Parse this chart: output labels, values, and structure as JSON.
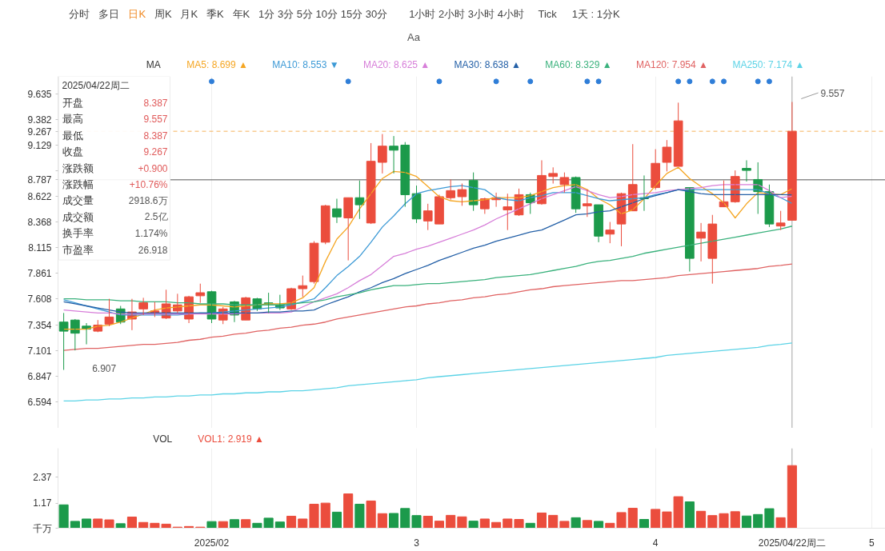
{
  "chart_data": [
    {
      "type": "other",
      "annotations": [
        "分时",
        "多日",
        "日K",
        "周K",
        "月K",
        "季K",
        "年K",
        "1分 3分 5分 10分 15分 30分",
        "1小时 2小时 3小时 4小时",
        "Tick",
        "1天 : 1分K"
      ],
      "colors": [
        "#444444",
        "#444444",
        "#f08a24",
        "#444444",
        "#444444",
        "#444444",
        "#444444",
        "#444444",
        "#444444",
        "#444444",
        "#444444"
      ],
      "subtitle": "Aa"
    },
    {
      "type": "candlestick",
      "categories": [
        null,
        null,
        null,
        null,
        null,
        null,
        null,
        null,
        null,
        null,
        null,
        null,
        null,
        "2025/02",
        null,
        null,
        null,
        null,
        null,
        null,
        null,
        null,
        null,
        null,
        null,
        null,
        null,
        null,
        null,
        null,
        null,
        "3",
        null,
        null,
        null,
        null,
        null,
        null,
        null,
        null,
        null,
        null,
        null,
        null,
        null,
        null,
        null,
        null,
        null,
        null,
        null,
        null,
        "4",
        null,
        null,
        null,
        null,
        null,
        null,
        null,
        null,
        null,
        null,
        null,
        "2025/04/22周二",
        null,
        null,
        null,
        null,
        null,
        null,
        "5"
      ],
      "ohlc": [
        [
          7.38,
          7.47,
          6.907,
          7.29
        ],
        [
          7.4,
          7.41,
          7.1,
          7.27
        ],
        [
          7.34,
          7.37,
          7.16,
          7.31
        ],
        [
          7.29,
          7.4,
          7.28,
          7.35
        ],
        [
          7.36,
          7.61,
          7.34,
          7.43
        ],
        [
          7.51,
          7.54,
          7.36,
          7.38
        ],
        [
          7.41,
          7.61,
          7.3,
          7.48
        ],
        [
          7.51,
          7.62,
          7.45,
          7.57
        ],
        [
          7.47,
          7.58,
          7.43,
          7.49
        ],
        [
          7.42,
          7.7,
          7.41,
          7.56
        ],
        [
          7.49,
          7.66,
          7.47,
          7.55
        ],
        [
          7.41,
          7.64,
          7.37,
          7.63
        ],
        [
          7.64,
          7.76,
          7.57,
          7.67
        ],
        [
          7.68,
          7.69,
          7.37,
          7.41
        ],
        [
          7.4,
          7.53,
          7.36,
          7.51
        ],
        [
          7.58,
          7.59,
          7.38,
          7.45
        ],
        [
          7.4,
          7.63,
          7.4,
          7.62
        ],
        [
          7.61,
          7.62,
          7.49,
          7.51
        ],
        [
          7.57,
          7.67,
          7.47,
          7.56
        ],
        [
          7.55,
          7.65,
          7.5,
          7.52
        ],
        [
          7.51,
          7.72,
          7.5,
          7.71
        ],
        [
          7.71,
          7.84,
          7.63,
          7.74
        ],
        [
          7.78,
          8.18,
          7.76,
          8.16
        ],
        [
          8.17,
          8.54,
          8.15,
          8.53
        ],
        [
          8.5,
          8.6,
          8.36,
          8.42
        ],
        [
          8.41,
          8.61,
          7.99,
          8.61
        ],
        [
          8.61,
          8.78,
          8.4,
          8.54
        ],
        [
          8.36,
          9.15,
          8.35,
          8.97
        ],
        [
          8.96,
          9.24,
          8.85,
          9.12
        ],
        [
          9.12,
          9.22,
          8.85,
          9.08
        ],
        [
          9.13,
          9.16,
          8.52,
          8.64
        ],
        [
          8.65,
          8.73,
          8.36,
          8.4
        ],
        [
          8.38,
          8.55,
          8.29,
          8.48
        ],
        [
          8.35,
          8.64,
          8.35,
          8.62
        ],
        [
          8.61,
          8.79,
          8.59,
          8.68
        ],
        [
          8.62,
          8.75,
          8.53,
          8.69
        ],
        [
          8.78,
          8.86,
          8.48,
          8.54
        ],
        [
          8.5,
          8.61,
          8.45,
          8.6
        ],
        [
          8.59,
          8.66,
          8.52,
          8.61
        ],
        [
          8.49,
          8.65,
          8.29,
          8.52
        ],
        [
          8.44,
          8.7,
          8.43,
          8.64
        ],
        [
          8.64,
          8.66,
          8.45,
          8.56
        ],
        [
          8.55,
          8.98,
          8.54,
          8.83
        ],
        [
          8.82,
          8.91,
          8.75,
          8.85
        ],
        [
          8.74,
          8.86,
          8.66,
          8.81
        ],
        [
          8.81,
          8.82,
          8.46,
          8.5
        ],
        [
          8.53,
          8.69,
          8.42,
          8.55
        ],
        [
          8.54,
          8.54,
          8.17,
          8.23
        ],
        [
          8.25,
          8.37,
          8.16,
          8.29
        ],
        [
          8.35,
          8.66,
          8.13,
          8.65
        ],
        [
          8.48,
          9.14,
          8.48,
          8.74
        ],
        [
          8.61,
          8.83,
          8.48,
          8.6
        ],
        [
          8.71,
          9.09,
          8.69,
          8.95
        ],
        [
          8.96,
          9.18,
          8.87,
          9.11
        ],
        [
          8.92,
          9.55,
          8.92,
          9.37
        ],
        [
          8.71,
          8.71,
          7.88,
          8.01
        ],
        [
          8.21,
          8.36,
          7.98,
          8.27
        ],
        [
          8.01,
          8.44,
          7.76,
          8.35
        ],
        [
          8.52,
          8.78,
          8.52,
          8.57
        ],
        [
          8.57,
          8.88,
          8.56,
          8.82
        ],
        [
          8.9,
          8.98,
          8.77,
          8.88
        ],
        [
          8.79,
          8.96,
          8.45,
          8.67
        ],
        [
          8.67,
          8.74,
          8.32,
          8.35
        ],
        [
          8.33,
          8.48,
          8.29,
          8.36
        ],
        [
          8.387,
          9.557,
          8.387,
          9.267
        ],
        null,
        null,
        null,
        null,
        null,
        null,
        null
      ],
      "colors": [
        "#1c9a4b",
        "#1c9a4b",
        "#1c9a4b",
        "#eb4d3d",
        "#eb4d3d",
        "#1c9a4b",
        "#eb4d3d",
        "#eb4d3d",
        "#eb4d3d",
        "#eb4d3d",
        "#eb4d3d",
        "#eb4d3d",
        "#eb4d3d",
        "#1c9a4b",
        "#eb4d3d",
        "#1c9a4b",
        "#eb4d3d",
        "#1c9a4b",
        "#1c9a4b",
        "#1c9a4b",
        "#eb4d3d",
        "#eb4d3d",
        "#eb4d3d",
        "#eb4d3d",
        "#1c9a4b",
        "#eb4d3d",
        "#1c9a4b",
        "#eb4d3d",
        "#eb4d3d",
        "#1c9a4b",
        "#1c9a4b",
        "#1c9a4b",
        "#eb4d3d",
        "#eb4d3d",
        "#eb4d3d",
        "#eb4d3d",
        "#1c9a4b",
        "#eb4d3d",
        "#eb4d3d",
        "#eb4d3d",
        "#eb4d3d",
        "#1c9a4b",
        "#eb4d3d",
        "#eb4d3d",
        "#eb4d3d",
        "#1c9a4b",
        "#eb4d3d",
        "#1c9a4b",
        "#eb4d3d",
        "#eb4d3d",
        "#eb4d3d",
        "#1c9a4b",
        "#eb4d3d",
        "#eb4d3d",
        "#eb4d3d",
        "#1c9a4b",
        "#eb4d3d",
        "#eb4d3d",
        "#eb4d3d",
        "#eb4d3d",
        "#1c9a4b",
        "#1c9a4b",
        "#1c9a4b",
        "#eb4d3d",
        "#eb4d3d",
        null,
        null,
        null,
        null,
        null,
        null,
        null
      ],
      "series": [
        {
          "type": "line",
          "name": "MA5: 8.699 ▲",
          "color": "#f5a623",
          "values": [
            7.31,
            7.31,
            7.31,
            7.34,
            7.35,
            7.38,
            7.42,
            7.46,
            7.5,
            7.52,
            7.53,
            7.54,
            7.55,
            7.55,
            7.54,
            7.53,
            7.54,
            7.55,
            7.56,
            7.56,
            7.57,
            7.62,
            7.72,
            7.98,
            8.2,
            8.32,
            8.5,
            8.65,
            8.8,
            8.87,
            8.86,
            8.82,
            8.72,
            8.62,
            8.58,
            8.57,
            8.58,
            8.59,
            8.61,
            8.61,
            8.61,
            8.63,
            8.67,
            8.71,
            8.73,
            8.74,
            8.69,
            8.6,
            8.54,
            8.45,
            8.49,
            8.6,
            8.73,
            8.85,
            8.91,
            8.8,
            8.72,
            8.65,
            8.56,
            8.41,
            8.55,
            8.66,
            8.65,
            8.64,
            8.699,
            null,
            null,
            null,
            null,
            null,
            null,
            null
          ]
        },
        {
          "type": "line",
          "name": "MA10: 8.553 ▼",
          "color": "#3d9ad6",
          "values": [
            7.6,
            7.57,
            7.54,
            7.51,
            7.48,
            7.45,
            7.45,
            7.45,
            7.45,
            7.45,
            7.45,
            7.46,
            7.47,
            7.47,
            7.48,
            7.49,
            7.5,
            7.51,
            7.52,
            7.53,
            7.55,
            7.58,
            7.61,
            7.72,
            7.84,
            7.93,
            8.03,
            8.17,
            8.32,
            8.43,
            8.55,
            8.65,
            8.68,
            8.7,
            8.72,
            8.73,
            8.71,
            8.69,
            8.61,
            8.59,
            8.58,
            8.61,
            8.63,
            8.66,
            8.66,
            8.66,
            8.63,
            8.6,
            8.58,
            8.59,
            8.6,
            8.61,
            8.64,
            8.66,
            8.69,
            8.69,
            8.69,
            8.69,
            8.69,
            8.69,
            8.69,
            8.69,
            8.65,
            8.61,
            8.553,
            null,
            null,
            null,
            null,
            null,
            null,
            null
          ]
        },
        {
          "type": "line",
          "name": "MA20: 8.625 ▲",
          "color": "#d77fd9",
          "values": [
            7.5,
            7.49,
            7.48,
            7.47,
            7.47,
            7.46,
            7.46,
            7.46,
            7.46,
            7.46,
            7.46,
            7.46,
            7.46,
            7.46,
            7.46,
            7.46,
            7.47,
            7.47,
            7.47,
            7.47,
            7.48,
            7.53,
            7.58,
            7.62,
            7.66,
            7.72,
            7.79,
            7.85,
            7.94,
            8.03,
            8.06,
            8.1,
            8.13,
            8.17,
            8.21,
            8.25,
            8.29,
            8.34,
            8.4,
            8.45,
            8.5,
            8.55,
            8.6,
            8.64,
            8.68,
            8.72,
            8.68,
            8.64,
            8.61,
            8.62,
            8.64,
            8.65,
            8.66,
            8.68,
            8.69,
            8.7,
            8.71,
            8.73,
            8.74,
            8.74,
            8.74,
            8.74,
            8.68,
            8.61,
            8.625,
            null,
            null,
            null,
            null,
            null,
            null,
            null
          ]
        },
        {
          "type": "line",
          "name": "MA30: 8.638 ▲",
          "color": "#2460a7",
          "values": [
            7.58,
            7.56,
            7.54,
            7.52,
            7.5,
            7.48,
            7.47,
            7.47,
            7.47,
            7.47,
            7.47,
            7.47,
            7.47,
            7.47,
            7.47,
            7.47,
            7.47,
            7.47,
            7.48,
            7.48,
            7.49,
            7.49,
            7.5,
            7.55,
            7.59,
            7.63,
            7.68,
            7.72,
            7.77,
            7.81,
            7.86,
            7.9,
            7.94,
            7.99,
            8.03,
            8.07,
            8.11,
            8.14,
            8.18,
            8.21,
            8.24,
            8.27,
            8.29,
            8.34,
            8.39,
            8.44,
            8.45,
            8.47,
            8.48,
            8.52,
            8.56,
            8.6,
            8.63,
            8.66,
            8.69,
            8.67,
            8.65,
            8.64,
            8.64,
            8.64,
            8.64,
            8.64,
            8.64,
            8.64,
            8.638,
            null,
            null,
            null,
            null,
            null,
            null,
            null
          ]
        },
        {
          "type": "line",
          "name": "MA60: 8.329 ▲",
          "color": "#3bb27d",
          "values": [
            7.61,
            7.61,
            7.6,
            7.6,
            7.6,
            7.59,
            7.59,
            7.58,
            7.58,
            7.58,
            7.57,
            7.57,
            7.56,
            7.56,
            7.56,
            7.55,
            7.55,
            7.55,
            7.55,
            7.55,
            7.56,
            7.57,
            7.58,
            7.6,
            7.63,
            7.65,
            7.67,
            7.7,
            7.72,
            7.74,
            7.74,
            7.75,
            7.76,
            7.76,
            7.77,
            7.78,
            7.79,
            7.8,
            7.82,
            7.83,
            7.84,
            7.85,
            7.87,
            7.89,
            7.91,
            7.93,
            7.96,
            7.98,
            7.99,
            8.01,
            8.03,
            8.06,
            8.08,
            8.1,
            8.12,
            8.14,
            8.16,
            8.18,
            8.2,
            8.22,
            8.24,
            8.26,
            8.28,
            8.3,
            8.329,
            null,
            null,
            null,
            null,
            null,
            null,
            null
          ]
        },
        {
          "type": "line",
          "name": "MA120: 7.954 ▲",
          "color": "#e06363",
          "values": [
            7.1,
            7.11,
            7.12,
            7.12,
            7.13,
            7.14,
            7.15,
            7.16,
            7.16,
            7.17,
            7.18,
            7.2,
            7.21,
            7.23,
            7.24,
            7.26,
            7.27,
            7.29,
            7.3,
            7.32,
            7.33,
            7.35,
            7.36,
            7.38,
            7.41,
            7.43,
            7.45,
            7.47,
            7.49,
            7.51,
            7.53,
            7.54,
            7.56,
            7.57,
            7.59,
            7.6,
            7.62,
            7.63,
            7.65,
            7.66,
            7.68,
            7.7,
            7.71,
            7.73,
            7.74,
            7.75,
            7.76,
            7.77,
            7.78,
            7.79,
            7.79,
            7.8,
            7.81,
            7.82,
            7.84,
            7.85,
            7.86,
            7.87,
            7.88,
            7.89,
            7.9,
            7.91,
            7.93,
            7.94,
            7.954,
            null,
            null,
            null,
            null,
            null,
            null,
            null
          ]
        },
        {
          "type": "line",
          "name": "MA250: 7.174 ▲",
          "color": "#5cd3e6",
          "values": [
            6.6,
            6.6,
            6.61,
            6.61,
            6.62,
            6.62,
            6.63,
            6.63,
            6.64,
            6.64,
            6.65,
            6.65,
            6.66,
            6.66,
            6.67,
            6.67,
            6.68,
            6.68,
            6.69,
            6.69,
            6.7,
            6.7,
            6.71,
            6.72,
            6.73,
            6.75,
            6.76,
            6.77,
            6.78,
            6.79,
            6.8,
            6.81,
            6.83,
            6.84,
            6.85,
            6.86,
            6.87,
            6.88,
            6.89,
            6.9,
            6.91,
            6.92,
            6.93,
            6.94,
            6.95,
            6.96,
            6.97,
            6.98,
            6.99,
            7.0,
            7.01,
            7.02,
            7.03,
            7.05,
            7.06,
            7.07,
            7.08,
            7.09,
            7.1,
            7.11,
            7.12,
            7.13,
            7.15,
            7.16,
            7.174,
            null,
            null,
            null,
            null,
            null,
            null,
            null
          ]
        },
        {
          "type": "scatter",
          "color": "#2f7ed8",
          "marker": "circle",
          "values": [
            null,
            null,
            null,
            null,
            null,
            null,
            null,
            null,
            null,
            null,
            null,
            null,
            null,
            9.76,
            null,
            null,
            null,
            null,
            null,
            null,
            null,
            null,
            null,
            null,
            null,
            9.76,
            null,
            null,
            null,
            null,
            null,
            null,
            null,
            9.76,
            null,
            null,
            null,
            null,
            9.76,
            null,
            null,
            9.76,
            null,
            null,
            null,
            null,
            9.76,
            9.76,
            null,
            null,
            null,
            null,
            null,
            null,
            9.76,
            9.76,
            null,
            9.76,
            9.76,
            null,
            null,
            9.76,
            9.76,
            null,
            null,
            null,
            null,
            null,
            null,
            null,
            null,
            null
          ]
        }
      ],
      "ylim": [
        6.33,
        9.81
      ],
      "yticks": [
        9.635,
        9.382,
        9.129,
        {
          "value": 8.875,
          "label": null
        },
        8.622,
        8.368,
        8.115,
        7.861,
        7.608,
        7.354,
        7.101,
        6.847,
        6.594
      ],
      "tick_labels": "y",
      "grid": "x",
      "legend": "top",
      "legend_title": "MA",
      "ref_lines": [
        {
          "axis": "y",
          "value": 9.267,
          "label": "9.267",
          "color": "#f5b25a",
          "line_style": "dashed"
        },
        {
          "axis": "y",
          "value": 8.787,
          "label": "8.787",
          "color": "#555555"
        },
        {
          "axis": "x",
          "value": "2025/04/22周二",
          "color": "#aaaaaa"
        }
      ],
      "annotations": [
        {
          "text": "9.557",
          "x": "2025/04/22周二",
          "y": 9.557
        },
        "6.907"
      ]
    },
    {
      "type": "other",
      "title": "2025/04/22周二",
      "annotations": [
        "开盘",
        "8.387",
        "最高",
        "9.557",
        "最低",
        "8.387",
        "收盘",
        "9.267",
        "涨跌额",
        "+0.900",
        "涨跌幅",
        "+10.76%",
        "成交量",
        "2918.6万",
        "成交额",
        "2.5亿",
        "换手率",
        "1.174%",
        "市盈率",
        "26.918"
      ],
      "colors": [
        "#333333",
        "#e05a5a",
        "#333333",
        "#e05a5a",
        "#333333",
        "#e05a5a",
        "#333333",
        "#e05a5a",
        "#333333",
        "#e05a5a",
        "#333333",
        "#e05a5a",
        "#333333",
        "#555555",
        "#333333",
        "#555555",
        "#333333",
        "#555555",
        "#333333",
        "#555555"
      ]
    },
    {
      "type": "bar",
      "categories": [
        null,
        null,
        null,
        null,
        null,
        null,
        null,
        null,
        null,
        null,
        null,
        null,
        null,
        "2025/02",
        null,
        null,
        null,
        null,
        null,
        null,
        null,
        null,
        null,
        null,
        null,
        null,
        null,
        null,
        null,
        null,
        null,
        "3",
        null,
        null,
        null,
        null,
        null,
        null,
        null,
        null,
        null,
        null,
        null,
        null,
        null,
        null,
        null,
        null,
        null,
        null,
        null,
        null,
        "4",
        null,
        null,
        null,
        null,
        null,
        null,
        null,
        null,
        null,
        null,
        null,
        "2025/04/22周二",
        null,
        null,
        null,
        null,
        null,
        null,
        "5"
      ],
      "series": [
        {
          "name": "VOL1: 2.919 ▲",
          "values": [
            1.09,
            0.32,
            0.43,
            0.43,
            0.39,
            0.21,
            0.52,
            0.27,
            0.23,
            0.19,
            0.05,
            0.08,
            0.05,
            0.31,
            0.31,
            0.4,
            0.4,
            0.23,
            0.47,
            0.29,
            0.56,
            0.43,
            1.12,
            1.17,
            0.75,
            1.6,
            1.12,
            1.27,
            0.68,
            0.69,
            0.92,
            0.59,
            0.56,
            0.33,
            0.6,
            0.53,
            0.33,
            0.43,
            0.27,
            0.43,
            0.41,
            0.23,
            0.71,
            0.6,
            0.32,
            0.49,
            0.36,
            0.32,
            0.23,
            0.73,
            0.93,
            0.41,
            0.88,
            0.76,
            1.47,
            1.23,
            0.79,
            0.59,
            0.68,
            0.77,
            0.57,
            0.64,
            0.91,
            0.49,
            2.92,
            null,
            null,
            null,
            null,
            null,
            null,
            null
          ]
        }
      ],
      "colors": [
        "#1c9a4b",
        "#1c9a4b",
        "#1c9a4b",
        "#eb4d3d",
        "#eb4d3d",
        "#1c9a4b",
        "#eb4d3d",
        "#eb4d3d",
        "#eb4d3d",
        "#eb4d3d",
        "#eb4d3d",
        "#eb4d3d",
        "#eb4d3d",
        "#1c9a4b",
        "#eb4d3d",
        "#1c9a4b",
        "#eb4d3d",
        "#1c9a4b",
        "#1c9a4b",
        "#1c9a4b",
        "#eb4d3d",
        "#eb4d3d",
        "#eb4d3d",
        "#eb4d3d",
        "#1c9a4b",
        "#eb4d3d",
        "#1c9a4b",
        "#eb4d3d",
        "#eb4d3d",
        "#1c9a4b",
        "#1c9a4b",
        "#1c9a4b",
        "#eb4d3d",
        "#eb4d3d",
        "#eb4d3d",
        "#eb4d3d",
        "#1c9a4b",
        "#eb4d3d",
        "#eb4d3d",
        "#eb4d3d",
        "#eb4d3d",
        "#1c9a4b",
        "#eb4d3d",
        "#eb4d3d",
        "#eb4d3d",
        "#1c9a4b",
        "#eb4d3d",
        "#1c9a4b",
        "#eb4d3d",
        "#eb4d3d",
        "#eb4d3d",
        "#1c9a4b",
        "#eb4d3d",
        "#eb4d3d",
        "#eb4d3d",
        "#1c9a4b",
        "#eb4d3d",
        "#eb4d3d",
        "#eb4d3d",
        "#eb4d3d",
        "#1c9a4b",
        "#1c9a4b",
        "#1c9a4b",
        "#eb4d3d",
        "#eb4d3d",
        null,
        null,
        null,
        null,
        null,
        null,
        null
      ],
      "ylim": [
        0,
        3.73
      ],
      "yticks": [
        {
          "value": 0,
          "label": "千万"
        },
        1.17,
        2.37
      ],
      "grid": "x",
      "legend": "top",
      "legend_title": "VOL",
      "ref_lines": [
        {
          "axis": "x",
          "value": "2025/04/22周二",
          "color": "#aaaaaa"
        }
      ]
    }
  ]
}
